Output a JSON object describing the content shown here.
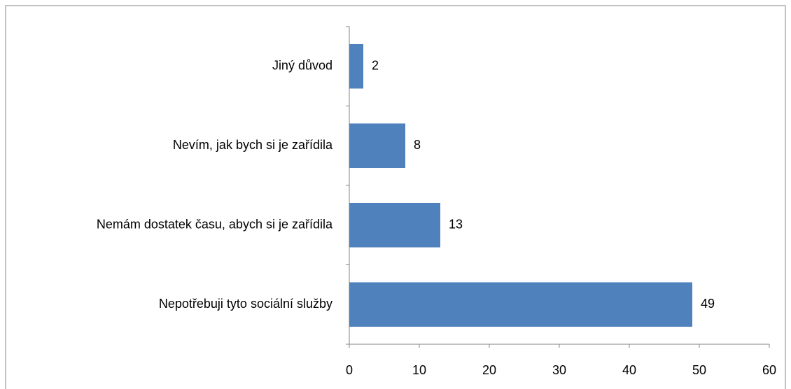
{
  "chart_data": {
    "type": "bar",
    "orientation": "horizontal",
    "categories": [
      "Jiný důvod",
      "Nevím, jak bych si je zařídila",
      "Nemám dostatek času, abych si je zařídila",
      "Nepotřebuji tyto sociální služby"
    ],
    "values": [
      2,
      8,
      13,
      49
    ],
    "color": "#4f81bd",
    "xlim": [
      0,
      60
    ],
    "xticks": [
      0,
      10,
      20,
      30,
      40,
      50,
      60
    ],
    "grid": false
  }
}
